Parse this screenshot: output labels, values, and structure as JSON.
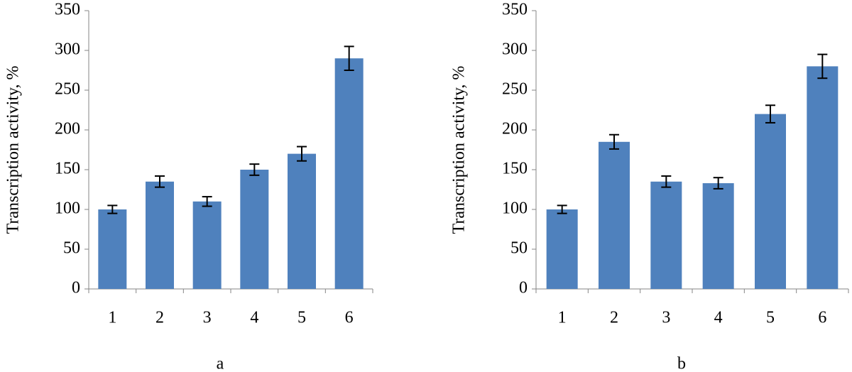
{
  "chart_data": [
    {
      "type": "bar",
      "caption": "a",
      "ylabel": "Transcription activity, %",
      "categories": [
        "1",
        "2",
        "3",
        "4",
        "5",
        "6"
      ],
      "values": [
        100,
        135,
        110,
        150,
        170,
        290
      ],
      "errors": [
        5,
        7,
        6,
        7,
        9,
        15
      ],
      "color": "#4f81bd",
      "ylim": [
        0,
        350
      ],
      "yticks": [
        0,
        50,
        100,
        150,
        200,
        250,
        300,
        350
      ],
      "grid": false
    },
    {
      "type": "bar",
      "caption": "b",
      "ylabel": "Transcription activity, %",
      "categories": [
        "1",
        "2",
        "3",
        "4",
        "5",
        "6"
      ],
      "values": [
        100,
        185,
        135,
        133,
        220,
        280
      ],
      "errors": [
        5,
        9,
        7,
        7,
        11,
        15
      ],
      "color": "#4f81bd",
      "ylim": [
        0,
        350
      ],
      "yticks": [
        0,
        50,
        100,
        150,
        200,
        250,
        300,
        350
      ],
      "grid": false
    }
  ]
}
